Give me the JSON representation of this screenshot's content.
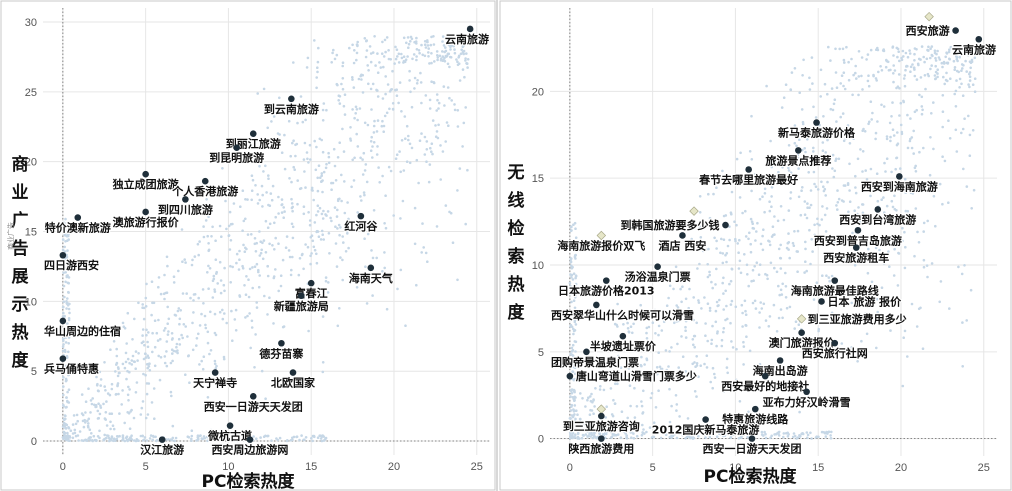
{
  "chart_data": [
    {
      "type": "scatter",
      "xlabel": "PC检索热度",
      "ylabel": "商业广告展示热度",
      "ylabel_small": "商业广告",
      "xlim": [
        -1.2,
        25.8
      ],
      "ylim": [
        -1.0,
        31.0
      ],
      "xticks": [
        0,
        5,
        10,
        15,
        20,
        25
      ],
      "yticks": [
        0,
        5,
        10,
        15,
        20,
        25,
        30
      ],
      "grid": true,
      "cloud": {
        "xmin": 0,
        "xmax": 24.5,
        "ymax": 29,
        "count": 1400,
        "seed": 11
      },
      "points": [
        {
          "label": "云南旅游",
          "x": 24.6,
          "y": 29.5,
          "style": "dark",
          "label_pos": "below"
        },
        {
          "label": "到云南旅游",
          "x": 13.8,
          "y": 24.5,
          "style": "dark",
          "label_pos": "below"
        },
        {
          "label": "到丽江旅游",
          "x": 11.5,
          "y": 22.0,
          "style": "dark",
          "label_pos": "below"
        },
        {
          "label": "到昆明旅游",
          "x": 10.5,
          "y": 21.0,
          "style": "dark",
          "label_pos": "below"
        },
        {
          "label": "独立成团旅游",
          "x": 5.0,
          "y": 19.1,
          "style": "dark",
          "label_pos": "below"
        },
        {
          "label": "个人香港旅游",
          "x": 8.6,
          "y": 18.6,
          "style": "dark",
          "label_pos": "below"
        },
        {
          "label": "到四川旅游",
          "x": 7.4,
          "y": 17.3,
          "style": "dark",
          "label_pos": "below"
        },
        {
          "label": "特价澳新旅游",
          "x": 0.9,
          "y": 16.0,
          "style": "dark",
          "label_pos": "below"
        },
        {
          "label": "澳旅游行报价",
          "x": 5.0,
          "y": 16.4,
          "style": "dark",
          "label_pos": "below"
        },
        {
          "label": "红河谷",
          "x": 18.0,
          "y": 16.1,
          "style": "dark",
          "label_pos": "below"
        },
        {
          "label": "四日游西安",
          "x": 0.0,
          "y": 13.3,
          "style": "dark",
          "label_pos": "below"
        },
        {
          "label": "海南天气",
          "x": 18.6,
          "y": 12.4,
          "style": "dark",
          "label_pos": "below"
        },
        {
          "label": "富春江",
          "x": 15.0,
          "y": 11.3,
          "style": "dark",
          "label_pos": "below"
        },
        {
          "label": "新疆旅游局",
          "x": 14.4,
          "y": 10.4,
          "style": "dark",
          "label_pos": "below"
        },
        {
          "label": "华山周边的住宿",
          "x": 0.0,
          "y": 8.6,
          "style": "dark",
          "label_pos": "below"
        },
        {
          "label": "德芬苗寨",
          "x": 13.2,
          "y": 7.0,
          "style": "dark",
          "label_pos": "below"
        },
        {
          "label": "兵马俑特惠",
          "x": 0.0,
          "y": 5.9,
          "style": "dark",
          "label_pos": "below"
        },
        {
          "label": "天宁禅寺",
          "x": 9.2,
          "y": 4.9,
          "style": "dark",
          "label_pos": "below"
        },
        {
          "label": "北欧国家",
          "x": 13.9,
          "y": 4.9,
          "style": "dark",
          "label_pos": "below"
        },
        {
          "label": "西安一日游天天发团",
          "x": 11.5,
          "y": 3.2,
          "style": "dark",
          "label_pos": "below"
        },
        {
          "label": "微杭古道",
          "x": 10.1,
          "y": 1.1,
          "style": "dark",
          "label_pos": "below"
        },
        {
          "label": "汉江旅游",
          "x": 6.0,
          "y": 0.1,
          "style": "dark",
          "label_pos": "below"
        },
        {
          "label": "西安周边旅游网",
          "x": 11.3,
          "y": 0.1,
          "style": "dark",
          "label_pos": "below"
        }
      ]
    },
    {
      "type": "scatter",
      "xlabel": "PC检索热度",
      "ylabel": "无线检索热度",
      "xlim": [
        -1.2,
        25.8
      ],
      "ylim": [
        -1.0,
        24.8
      ],
      "xticks": [
        0,
        5,
        10,
        15,
        20,
        25
      ],
      "yticks": [
        0,
        5,
        10,
        15,
        20
      ],
      "grid": true,
      "cloud": {
        "xmin": 0,
        "xmax": 24.5,
        "ymax": 22.6,
        "count": 1400,
        "seed": 29
      },
      "points": [
        {
          "label": "西安旅游",
          "x": 23.3,
          "y": 23.5,
          "style": "dark",
          "label_pos": "left"
        },
        {
          "label": "云南旅游",
          "x": 24.7,
          "y": 23.0,
          "style": "dark",
          "label_pos": "below"
        },
        {
          "label": "",
          "x": 21.7,
          "y": 24.3,
          "style": "light",
          "label_pos": "none"
        },
        {
          "label": "新马泰旅游价格",
          "x": 14.9,
          "y": 18.2,
          "style": "dark",
          "label_pos": "below"
        },
        {
          "label": "旅游景点推荐",
          "x": 13.8,
          "y": 16.6,
          "style": "dark",
          "label_pos": "below"
        },
        {
          "label": "春节去哪里旅游最好",
          "x": 10.8,
          "y": 15.5,
          "style": "dark",
          "label_pos": "below"
        },
        {
          "label": "西安到海南旅游",
          "x": 19.9,
          "y": 15.1,
          "style": "dark",
          "label_pos": "below"
        },
        {
          "label": "",
          "x": 7.5,
          "y": 13.1,
          "style": "light",
          "label_pos": "none"
        },
        {
          "label": "到韩国旅游要多少钱",
          "x": 9.4,
          "y": 12.3,
          "style": "dark",
          "label_pos": "left"
        },
        {
          "label": "西安到台湾旅游",
          "x": 18.6,
          "y": 13.2,
          "style": "dark",
          "label_pos": "below"
        },
        {
          "label": "西安到普吉岛旅游",
          "x": 17.4,
          "y": 12.0,
          "style": "dark",
          "label_pos": "below"
        },
        {
          "label": "海南旅游报价双飞",
          "x": 1.9,
          "y": 11.7,
          "style": "light",
          "label_pos": "below"
        },
        {
          "label": "酒店 西安",
          "x": 6.8,
          "y": 11.7,
          "style": "dark",
          "label_pos": "below"
        },
        {
          "label": "西安旅游租车",
          "x": 17.3,
          "y": 11.0,
          "style": "dark",
          "label_pos": "below"
        },
        {
          "label": "汤浴温泉门票",
          "x": 5.3,
          "y": 9.9,
          "style": "dark",
          "label_pos": "below"
        },
        {
          "label": "日本旅游价格2013",
          "x": 2.2,
          "y": 9.1,
          "style": "dark",
          "label_pos": "below"
        },
        {
          "label": "海南旅游最佳路线",
          "x": 16.0,
          "y": 9.1,
          "style": "dark",
          "label_pos": "below"
        },
        {
          "label": "日本 旅游 报价",
          "x": 15.2,
          "y": 7.9,
          "style": "dark",
          "label_pos": "right"
        },
        {
          "label": "西安翠华山什么时候可以滑雪",
          "x": 1.6,
          "y": 7.7,
          "style": "dark",
          "label_pos": "below"
        },
        {
          "label": "到三亚旅游费用多少",
          "x": 14.0,
          "y": 6.9,
          "style": "light",
          "label_pos": "right"
        },
        {
          "label": "澳门旅游报价",
          "x": 14.0,
          "y": 6.1,
          "style": "dark",
          "label_pos": "below"
        },
        {
          "label": "半坡遗址票价",
          "x": 3.2,
          "y": 5.9,
          "style": "dark",
          "label_pos": "below"
        },
        {
          "label": "团购帝景温泉门票",
          "x": 1.0,
          "y": 5.0,
          "style": "dark",
          "label_pos": "below"
        },
        {
          "label": "西安旅行社网",
          "x": 16.0,
          "y": 5.5,
          "style": "dark",
          "label_pos": "below"
        },
        {
          "label": "海南出岛游",
          "x": 12.7,
          "y": 4.5,
          "style": "dark",
          "label_pos": "below"
        },
        {
          "label": "唐山弯道山滑雪门票多少",
          "x": 0.0,
          "y": 3.6,
          "style": "dark",
          "label_pos": "right"
        },
        {
          "label": "西安最好的地接社",
          "x": 11.8,
          "y": 3.6,
          "style": "dark",
          "label_pos": "below"
        },
        {
          "label": "亚布力好汉岭滑雪",
          "x": 14.3,
          "y": 2.7,
          "style": "dark",
          "label_pos": "below"
        },
        {
          "label": "",
          "x": 1.9,
          "y": 1.7,
          "style": "light",
          "label_pos": "none"
        },
        {
          "label": "到三亚旅游咨询",
          "x": 1.9,
          "y": 1.3,
          "style": "dark",
          "label_pos": "below"
        },
        {
          "label": "特惠旅游线路",
          "x": 11.2,
          "y": 1.7,
          "style": "dark",
          "label_pos": "below"
        },
        {
          "label": "2012国庆新马泰旅游",
          "x": 8.2,
          "y": 1.1,
          "style": "dark",
          "label_pos": "below"
        },
        {
          "label": "陕西旅游费用",
          "x": 1.9,
          "y": 0.0,
          "style": "dark",
          "label_pos": "below"
        },
        {
          "label": "西安一日游天天发团",
          "x": 11.0,
          "y": 0.0,
          "style": "dark",
          "label_pos": "below"
        }
      ]
    }
  ]
}
